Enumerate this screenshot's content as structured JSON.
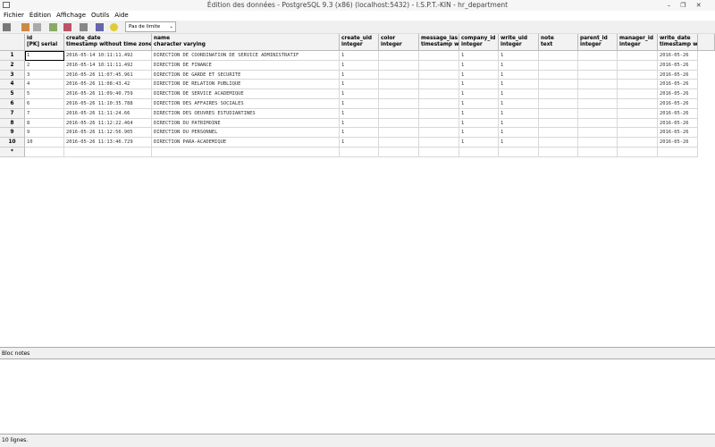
{
  "window": {
    "title": "Édition des données - PostgreSQL 9.3 (x86) (localhost:5432) - I.S.P.T.-KIN - hr_department"
  },
  "menu": [
    "Fichier",
    "Édition",
    "Affichage",
    "Outils",
    "Aide"
  ],
  "toolbar": {
    "limit": "Pas de limite"
  },
  "table": {
    "columns": [
      {
        "name": "id",
        "type": "[PK] serial"
      },
      {
        "name": "create_date",
        "type": "timestamp without time zone"
      },
      {
        "name": "name",
        "type": "character varying"
      },
      {
        "name": "create_uid",
        "type": "integer"
      },
      {
        "name": "color",
        "type": "integer"
      },
      {
        "name": "message_las",
        "type": "timestamp w"
      },
      {
        "name": "company_id",
        "type": "integer"
      },
      {
        "name": "write_uid",
        "type": "integer"
      },
      {
        "name": "note",
        "type": "text"
      },
      {
        "name": "parent_id",
        "type": "integer"
      },
      {
        "name": "manager_id",
        "type": "integer"
      },
      {
        "name": "write_date",
        "type": "timestamp w"
      }
    ],
    "row_labels": [
      1,
      2,
      3,
      4,
      5,
      6,
      7,
      8,
      9,
      10,
      "*"
    ],
    "rows": [
      [
        1,
        "2016-05-14 10:11:11.492",
        "DIRECTION  DE COORDINATION DE SERVICE ADMINISTRATIF",
        1,
        null,
        null,
        1,
        1,
        null,
        null,
        null,
        "2016-05-26"
      ],
      [
        2,
        "2016-05-14 10:11:11.492",
        "DIRECTION DE FINANCE",
        1,
        null,
        null,
        1,
        1,
        null,
        null,
        null,
        "2016-05-26"
      ],
      [
        3,
        "2016-05-26 11:07:45.961",
        "DIRECTION DE GARDE ET SECURITE",
        1,
        null,
        null,
        1,
        1,
        null,
        null,
        null,
        "2016-05-26"
      ],
      [
        4,
        "2016-05-26 11:08:43.42",
        "DIRECTION DE RELATION PUBLIQUE",
        1,
        null,
        null,
        1,
        1,
        null,
        null,
        null,
        "2016-05-26"
      ],
      [
        5,
        "2016-05-26 11:09:40.759",
        "DIRECTION DE SERVICE ACADEMIQUE",
        1,
        null,
        null,
        1,
        1,
        null,
        null,
        null,
        "2016-05-26"
      ],
      [
        6,
        "2016-05-26 11:10:35.788",
        "DIRECTION DES AFFAIRES SOCIALES",
        1,
        null,
        null,
        1,
        1,
        null,
        null,
        null,
        "2016-05-26"
      ],
      [
        7,
        "2016-05-26 11:11:24.66",
        "DIRECTION DES OEUVRES ESTUDIANTINES",
        1,
        null,
        null,
        1,
        1,
        null,
        null,
        null,
        "2016-05-26"
      ],
      [
        8,
        "2016-05-26 11:12:22.464",
        "DIRECTION DU PATRIMOINE",
        1,
        null,
        null,
        1,
        1,
        null,
        null,
        null,
        "2016-05-26"
      ],
      [
        9,
        "2016-05-26 11:12:56.905",
        "DIRECTION DU PERSONNEL",
        1,
        null,
        null,
        1,
        1,
        null,
        null,
        null,
        "2016-05-26"
      ],
      [
        10,
        "2016-05-26 11:13:46.729",
        "DIRECTION PARA-ACADEMIQUE",
        1,
        null,
        null,
        1,
        1,
        null,
        null,
        null,
        "2016-05-26"
      ]
    ]
  },
  "notes": {
    "label": "Bloc notes"
  },
  "status": "10 lignes."
}
